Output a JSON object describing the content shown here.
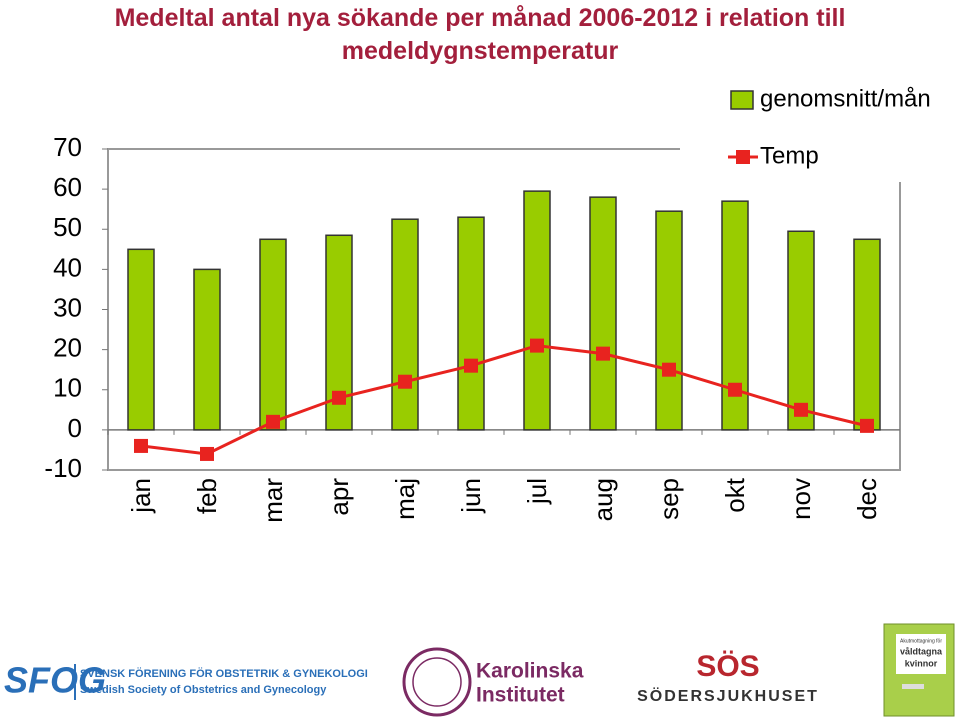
{
  "chart_data": {
    "type": "bar_line",
    "title": "Medeltal antal nya sökande per månad 2006-2012 i relation till medeldygnstemperatur",
    "categories": [
      "jan",
      "feb",
      "mar",
      "apr",
      "maj",
      "jun",
      "jul",
      "aug",
      "sep",
      "okt",
      "nov",
      "dec"
    ],
    "series": [
      {
        "name": "genomsnitt/mån",
        "type": "bar",
        "color": "#99cc00",
        "values": [
          45,
          40,
          47.5,
          48.5,
          52.5,
          53,
          59.5,
          58,
          54.5,
          57,
          49.5,
          47.5
        ]
      },
      {
        "name": "Temp",
        "type": "line",
        "color": "#e8231f",
        "values": [
          -4,
          -6,
          2,
          8,
          12,
          16,
          21,
          19,
          15,
          10,
          5,
          1
        ]
      }
    ],
    "ylim": [
      -10,
      70
    ],
    "yticks": [
      -10,
      0,
      10,
      20,
      30,
      40,
      50,
      60,
      70
    ],
    "grid": false,
    "legend": "top-right"
  },
  "logos": {
    "sfog": {
      "mark": "SFOG",
      "line1": "SVENSK FÖRENING FÖR OBSTETRIK & GYNEKOLOGI",
      "line2": "Swedish Society of Obstetrics and Gynecology"
    },
    "karolinska": {
      "line1": "Karolinska",
      "line2": "Institutet"
    },
    "sos": {
      "mark": "SÖS",
      "name": "SÖDERSJUKHUSET"
    },
    "book": {
      "line1": "Akutmottagning för",
      "line2": "våldtagna",
      "line3": "kvinnor"
    }
  }
}
